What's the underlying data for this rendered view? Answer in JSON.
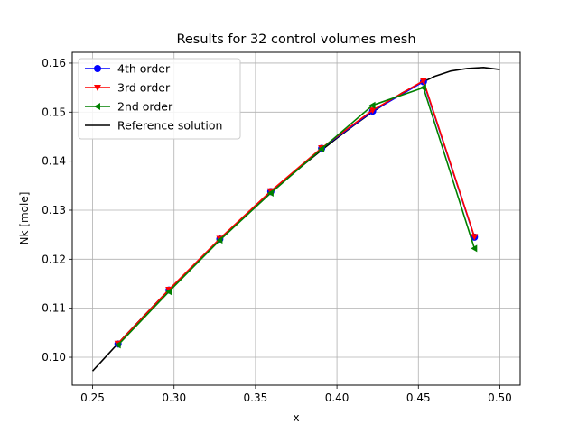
{
  "chart_data": {
    "type": "line",
    "title": "Results for 32 control volumes mesh",
    "xlabel": "x",
    "ylabel": "Nk [mole]",
    "xlim": [
      0.2375,
      0.5125
    ],
    "ylim": [
      0.0943,
      0.1622
    ],
    "xticks": [
      0.25,
      0.3,
      0.35,
      0.4,
      0.45,
      0.5
    ],
    "xtick_labels": [
      "0.25",
      "0.30",
      "0.35",
      "0.40",
      "0.45",
      "0.50"
    ],
    "yticks": [
      0.1,
      0.11,
      0.12,
      0.13,
      0.14,
      0.15,
      0.16
    ],
    "ytick_labels": [
      "0.10",
      "0.11",
      "0.12",
      "0.13",
      "0.14",
      "0.15",
      "0.16"
    ],
    "grid": true,
    "legend_position": "top-left",
    "series": [
      {
        "name": "4th order",
        "color": "#0000ff",
        "marker": "circle",
        "x": [
          0.2656,
          0.2969,
          0.3281,
          0.3594,
          0.3906,
          0.4219,
          0.4531,
          0.4844
        ],
        "y": [
          0.1027,
          0.1137,
          0.1241,
          0.1338,
          0.1426,
          0.1502,
          0.1562,
          0.1245
        ]
      },
      {
        "name": "3rd order",
        "color": "#ff0000",
        "marker": "triangle-down",
        "x": [
          0.2656,
          0.2969,
          0.3281,
          0.3594,
          0.3906,
          0.4219,
          0.4531,
          0.4844
        ],
        "y": [
          0.1028,
          0.1138,
          0.1242,
          0.1339,
          0.1427,
          0.1504,
          0.1564,
          0.1246
        ]
      },
      {
        "name": "2nd order",
        "color": "#008000",
        "marker": "triangle-left",
        "x": [
          0.2656,
          0.2969,
          0.3281,
          0.3594,
          0.3906,
          0.4219,
          0.4531,
          0.4844
        ],
        "y": [
          0.1025,
          0.1134,
          0.1239,
          0.1335,
          0.1425,
          0.1514,
          0.155,
          0.1222
        ]
      },
      {
        "name": "Reference solution",
        "color": "#000000",
        "marker": "none",
        "x": [
          0.25,
          0.26,
          0.27,
          0.28,
          0.29,
          0.3,
          0.31,
          0.32,
          0.33,
          0.34,
          0.35,
          0.36,
          0.37,
          0.38,
          0.39,
          0.4,
          0.41,
          0.42,
          0.43,
          0.44,
          0.45,
          0.46,
          0.47,
          0.48,
          0.49,
          0.5
        ],
        "y": [
          0.0972,
          0.1008,
          0.1044,
          0.1079,
          0.1114,
          0.1148,
          0.1181,
          0.1213,
          0.1245,
          0.1276,
          0.1307,
          0.1337,
          0.1366,
          0.1394,
          0.1421,
          0.1447,
          0.1472,
          0.1496,
          0.1518,
          0.1539,
          0.1557,
          0.1573,
          0.1584,
          0.1589,
          0.1591,
          0.1587
        ]
      }
    ]
  }
}
